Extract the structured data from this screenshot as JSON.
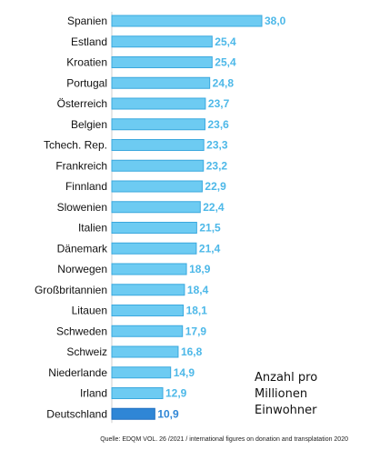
{
  "chart_data": {
    "type": "bar",
    "orientation": "horizontal",
    "categories": [
      "Spanien",
      "Estland",
      "Kroatien",
      "Portugal",
      "Österreich",
      "Belgien",
      "Tchech. Rep.",
      "Frankreich",
      "Finnland",
      "Slowenien",
      "Italien",
      "Dänemark",
      "Norwegen",
      "Großbritannien",
      "Litauen",
      "Schweden",
      "Schweiz",
      "Niederlande",
      "Irland",
      "Deutschland"
    ],
    "value_labels": [
      "38,0",
      "25,4",
      "25,4",
      "24,8",
      "23,7",
      "23,6",
      "23,3",
      "23,2",
      "22,9",
      "22,4",
      "21,5",
      "21,4",
      "18,9",
      "18,4",
      "18,1",
      "17,9",
      "16,8",
      "14,9",
      "12,9",
      "10,9"
    ],
    "series": [
      {
        "values": [
          38.0,
          25.4,
          25.4,
          24.8,
          23.7,
          23.6,
          23.3,
          23.2,
          22.9,
          22.4,
          21.5,
          21.4,
          18.9,
          18.4,
          18.1,
          17.9,
          16.8,
          14.9,
          12.9,
          10.9
        ]
      }
    ],
    "highlight_category": "Deutschland",
    "xlim": [
      0,
      40
    ],
    "grid": false,
    "colors": {
      "bar": "#6dcbf2",
      "bar_edge": "#3aa8de",
      "highlight": "#2f86d6",
      "highlight_edge": "#1f6fc0",
      "value_text": "#4db8e8"
    }
  },
  "annotation": [
    "Anzahl pro",
    "Millionen",
    "Einwohner"
  ],
  "source": "Quelle: EDQM VOL. 26 /2021  / international  figures on donation  and transplatation  2020"
}
